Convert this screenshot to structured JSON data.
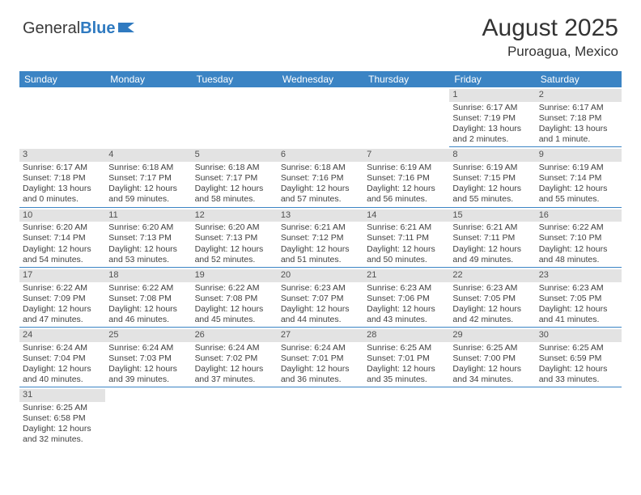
{
  "logo": {
    "text1": "General",
    "text2": "Blue"
  },
  "title": "August 2025",
  "location": "Puroagua, Mexico",
  "colors": {
    "header_bg": "#3b84c4",
    "header_text": "#ffffff",
    "daynum_bg": "#e3e3e3",
    "body_text": "#404040",
    "rule": "#3b84c4"
  },
  "dow": [
    "Sunday",
    "Monday",
    "Tuesday",
    "Wednesday",
    "Thursday",
    "Friday",
    "Saturday"
  ],
  "weeks": [
    [
      null,
      null,
      null,
      null,
      null,
      {
        "n": "1",
        "rise": "6:17 AM",
        "set": "7:19 PM",
        "d": "13 hours and 2 minutes."
      },
      {
        "n": "2",
        "rise": "6:17 AM",
        "set": "7:18 PM",
        "d": "13 hours and 1 minute."
      }
    ],
    [
      {
        "n": "3",
        "rise": "6:17 AM",
        "set": "7:18 PM",
        "d": "13 hours and 0 minutes."
      },
      {
        "n": "4",
        "rise": "6:18 AM",
        "set": "7:17 PM",
        "d": "12 hours and 59 minutes."
      },
      {
        "n": "5",
        "rise": "6:18 AM",
        "set": "7:17 PM",
        "d": "12 hours and 58 minutes."
      },
      {
        "n": "6",
        "rise": "6:18 AM",
        "set": "7:16 PM",
        "d": "12 hours and 57 minutes."
      },
      {
        "n": "7",
        "rise": "6:19 AM",
        "set": "7:16 PM",
        "d": "12 hours and 56 minutes."
      },
      {
        "n": "8",
        "rise": "6:19 AM",
        "set": "7:15 PM",
        "d": "12 hours and 55 minutes."
      },
      {
        "n": "9",
        "rise": "6:19 AM",
        "set": "7:14 PM",
        "d": "12 hours and 55 minutes."
      }
    ],
    [
      {
        "n": "10",
        "rise": "6:20 AM",
        "set": "7:14 PM",
        "d": "12 hours and 54 minutes."
      },
      {
        "n": "11",
        "rise": "6:20 AM",
        "set": "7:13 PM",
        "d": "12 hours and 53 minutes."
      },
      {
        "n": "12",
        "rise": "6:20 AM",
        "set": "7:13 PM",
        "d": "12 hours and 52 minutes."
      },
      {
        "n": "13",
        "rise": "6:21 AM",
        "set": "7:12 PM",
        "d": "12 hours and 51 minutes."
      },
      {
        "n": "14",
        "rise": "6:21 AM",
        "set": "7:11 PM",
        "d": "12 hours and 50 minutes."
      },
      {
        "n": "15",
        "rise": "6:21 AM",
        "set": "7:11 PM",
        "d": "12 hours and 49 minutes."
      },
      {
        "n": "16",
        "rise": "6:22 AM",
        "set": "7:10 PM",
        "d": "12 hours and 48 minutes."
      }
    ],
    [
      {
        "n": "17",
        "rise": "6:22 AM",
        "set": "7:09 PM",
        "d": "12 hours and 47 minutes."
      },
      {
        "n": "18",
        "rise": "6:22 AM",
        "set": "7:08 PM",
        "d": "12 hours and 46 minutes."
      },
      {
        "n": "19",
        "rise": "6:22 AM",
        "set": "7:08 PM",
        "d": "12 hours and 45 minutes."
      },
      {
        "n": "20",
        "rise": "6:23 AM",
        "set": "7:07 PM",
        "d": "12 hours and 44 minutes."
      },
      {
        "n": "21",
        "rise": "6:23 AM",
        "set": "7:06 PM",
        "d": "12 hours and 43 minutes."
      },
      {
        "n": "22",
        "rise": "6:23 AM",
        "set": "7:05 PM",
        "d": "12 hours and 42 minutes."
      },
      {
        "n": "23",
        "rise": "6:23 AM",
        "set": "7:05 PM",
        "d": "12 hours and 41 minutes."
      }
    ],
    [
      {
        "n": "24",
        "rise": "6:24 AM",
        "set": "7:04 PM",
        "d": "12 hours and 40 minutes."
      },
      {
        "n": "25",
        "rise": "6:24 AM",
        "set": "7:03 PM",
        "d": "12 hours and 39 minutes."
      },
      {
        "n": "26",
        "rise": "6:24 AM",
        "set": "7:02 PM",
        "d": "12 hours and 37 minutes."
      },
      {
        "n": "27",
        "rise": "6:24 AM",
        "set": "7:01 PM",
        "d": "12 hours and 36 minutes."
      },
      {
        "n": "28",
        "rise": "6:25 AM",
        "set": "7:01 PM",
        "d": "12 hours and 35 minutes."
      },
      {
        "n": "29",
        "rise": "6:25 AM",
        "set": "7:00 PM",
        "d": "12 hours and 34 minutes."
      },
      {
        "n": "30",
        "rise": "6:25 AM",
        "set": "6:59 PM",
        "d": "12 hours and 33 minutes."
      }
    ],
    [
      {
        "n": "31",
        "rise": "6:25 AM",
        "set": "6:58 PM",
        "d": "12 hours and 32 minutes."
      },
      null,
      null,
      null,
      null,
      null,
      null
    ]
  ],
  "labels": {
    "sunrise": "Sunrise:",
    "sunset": "Sunset:",
    "daylight": "Daylight:"
  }
}
